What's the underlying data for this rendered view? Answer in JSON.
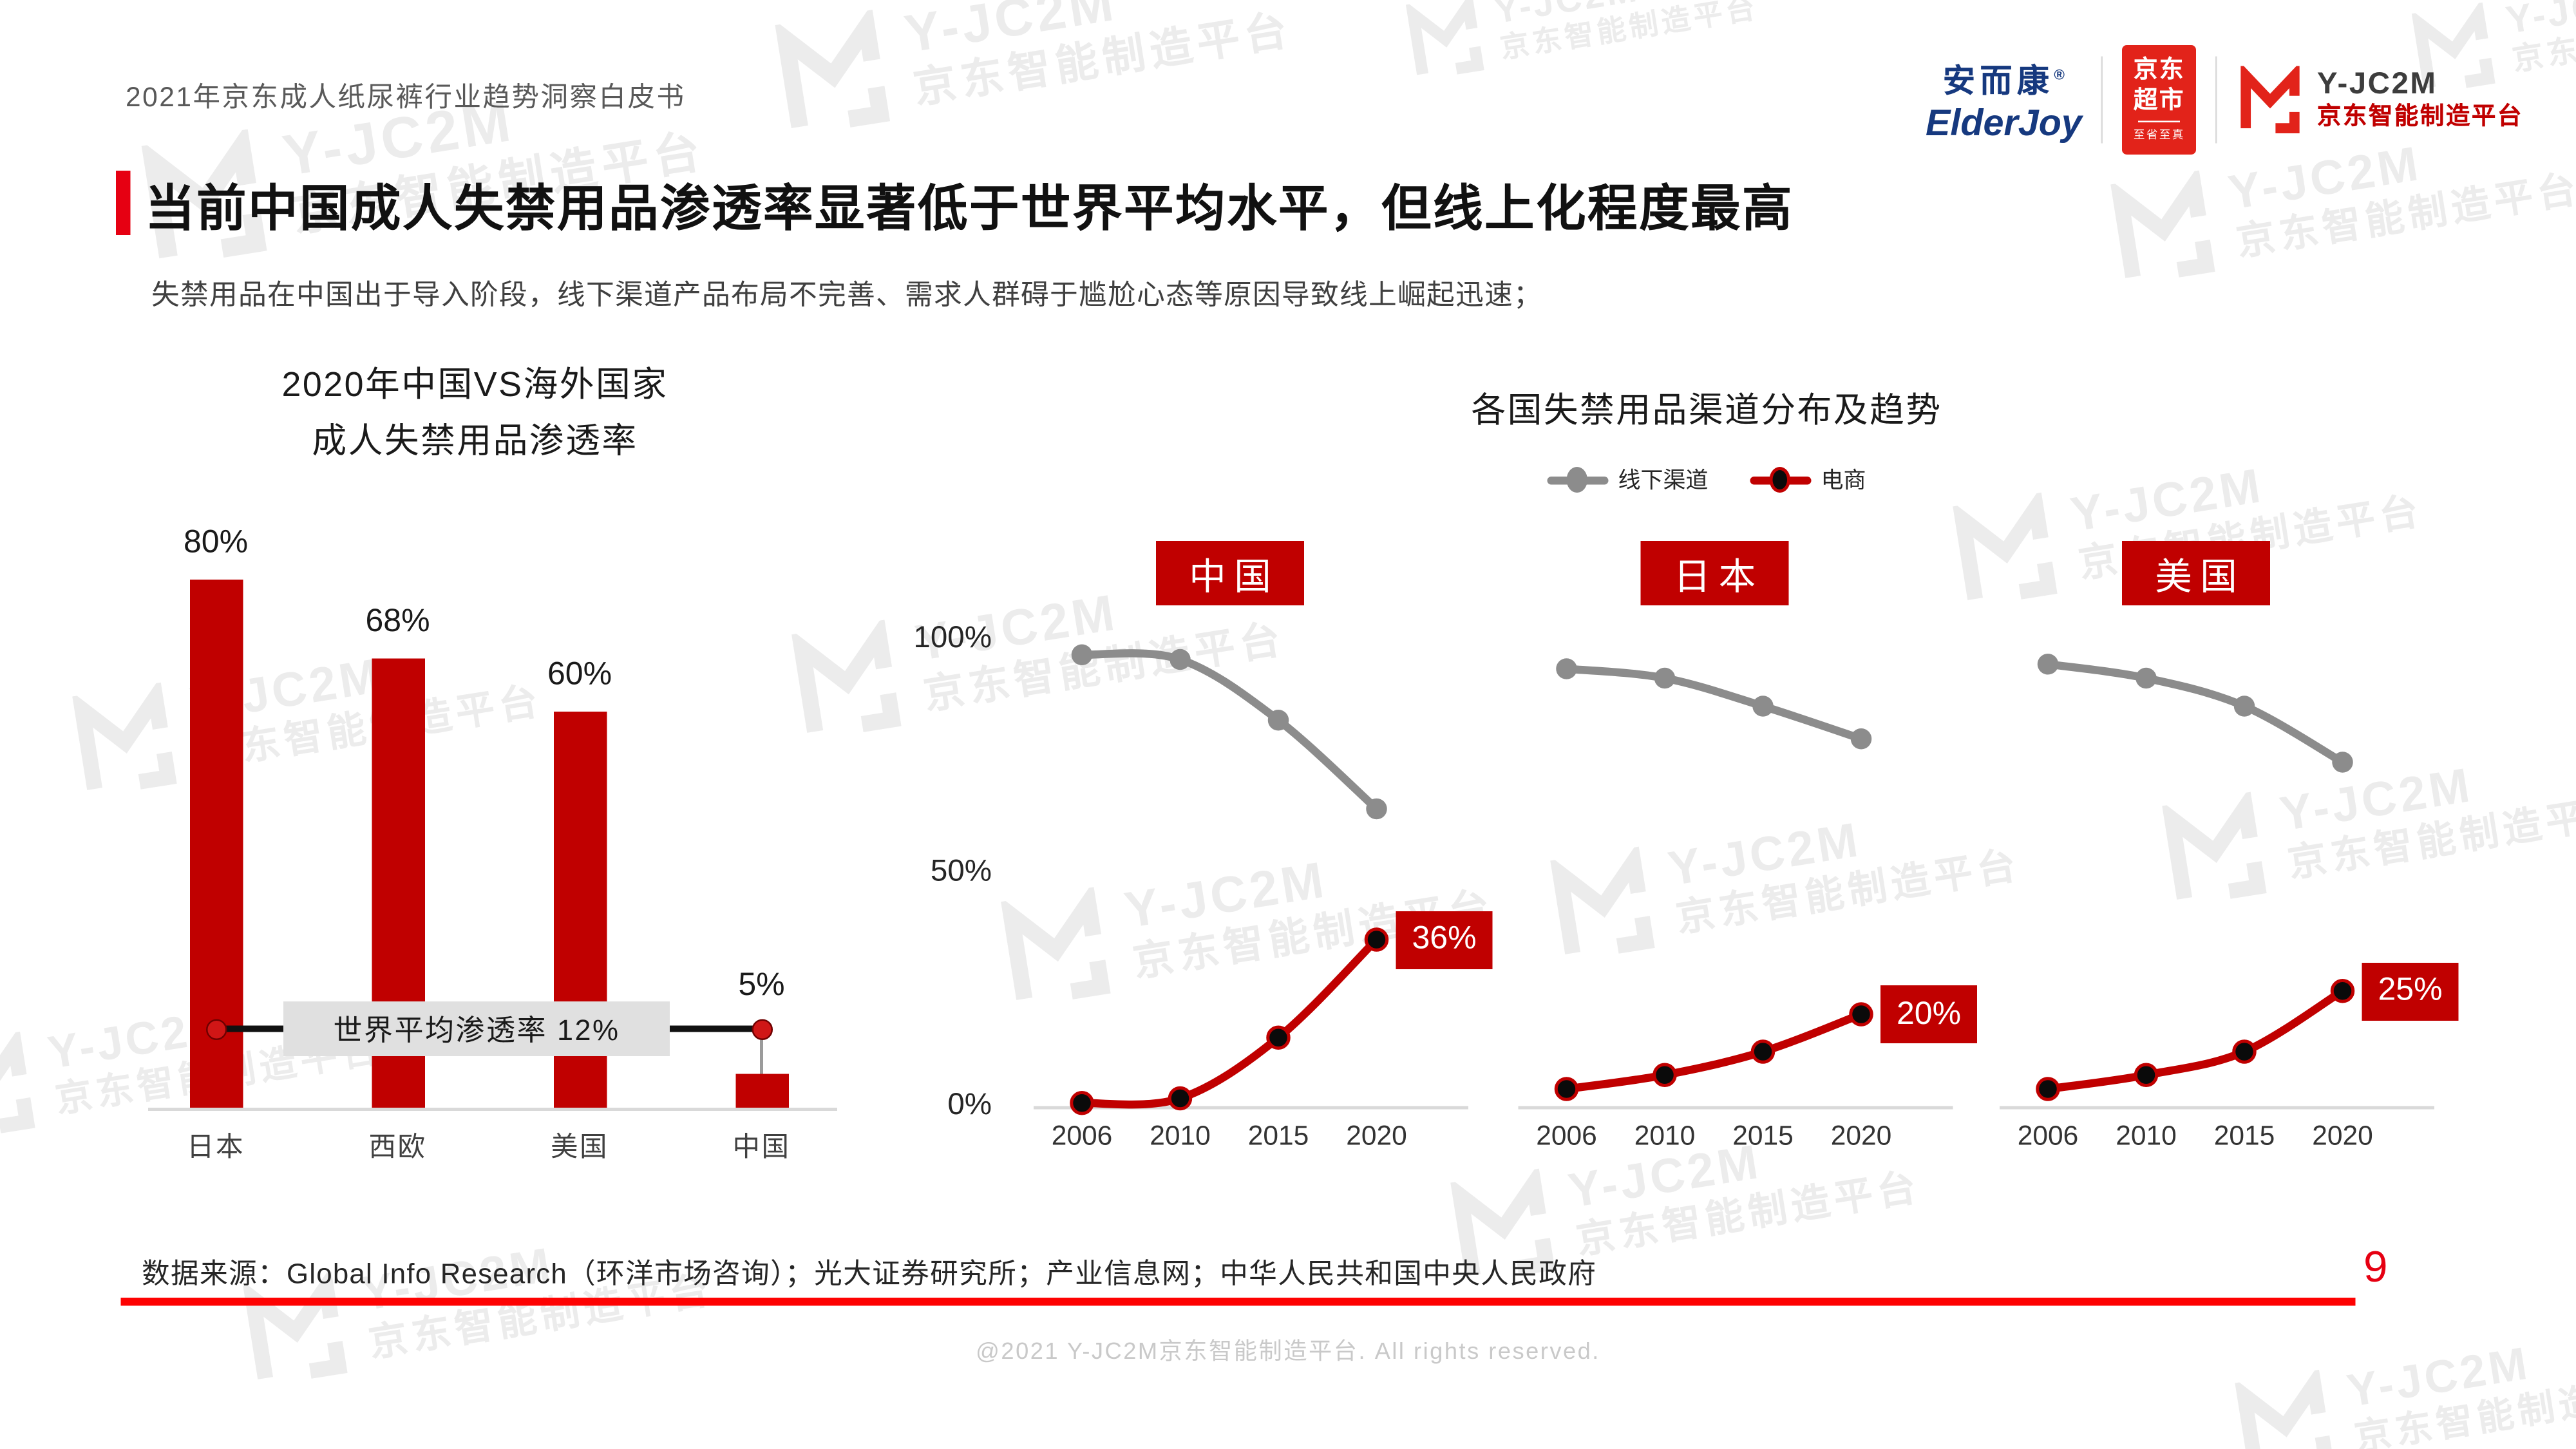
{
  "header": {
    "doc_title": "2021年京东成人纸尿裤行业趋势洞察白皮书",
    "logos": {
      "elderjoy_cn": "安而康",
      "elderjoy_reg": "®",
      "elderjoy_en": "ElderJoy",
      "jd_market_line1": "京东",
      "jd_market_line2": "超市",
      "jd_market_tagline": "至省至真",
      "yjc2m_name": "Y-JC2M",
      "yjc2m_platform": "京东智能制造平台"
    }
  },
  "title": "当前中国成人失禁用品渗透率显著低于世界平均水平，但线上化程度最高",
  "subtitle": "失禁用品在中国出于导入阶段，线下渠道产品布局不完善、需求人群碍于尴尬心态等原因导致线上崛起迅速；",
  "watermark": {
    "brand": "Y-JC2M",
    "platform": "京东智能制造平台"
  },
  "colors": {
    "brand_red": "#c00000",
    "accent_red": "#e60012",
    "jd_red": "#e2231a",
    "rule_red": "#fe0202",
    "gray_line": "#8c8c8c",
    "axis_gray": "#d9d9d9",
    "annotation_bg": "#e0e0e0"
  },
  "chart_data": [
    {
      "type": "bar",
      "title_line1": "2020年中国VS海外国家",
      "title_line2": "成人失禁用品渗透率",
      "categories": [
        "日本",
        "西欧",
        "美国",
        "中国"
      ],
      "values": [
        80,
        68,
        60,
        5
      ],
      "value_labels": [
        "80%",
        "68%",
        "60%",
        "5%"
      ],
      "annotation": {
        "label": "世界平均渗透率 12%",
        "value": 12
      },
      "bar_color": "#c00000",
      "ylim": [
        0,
        100
      ],
      "grid": false
    },
    {
      "type": "line",
      "title": "各国失禁用品渠道分布及趋势",
      "legend": [
        {
          "name": "线下渠道",
          "color": "#8c8c8c"
        },
        {
          "name": "电商",
          "color": "#c00000"
        }
      ],
      "y_ticks": [
        {
          "label": "100%",
          "value": 100
        },
        {
          "label": "50%",
          "value": 50
        },
        {
          "label": "0%",
          "value": 0
        }
      ],
      "x": [
        "2006",
        "2010",
        "2015",
        "2020"
      ],
      "ylim": [
        0,
        100
      ],
      "panels": [
        {
          "country": "中国",
          "offline": [
            97,
            96,
            83,
            64
          ],
          "ecommerce": [
            1,
            2,
            15,
            36
          ],
          "end_label": "36%"
        },
        {
          "country": "日本",
          "offline": [
            94,
            92,
            86,
            79
          ],
          "ecommerce": [
            4,
            7,
            12,
            20
          ],
          "end_label": "20%"
        },
        {
          "country": "美国",
          "offline": [
            95,
            92,
            86,
            74
          ],
          "ecommerce": [
            4,
            7,
            12,
            25
          ],
          "end_label": "25%"
        }
      ]
    }
  ],
  "source": "数据来源：Global Info Research（环洋市场咨询）；光大证券研究所；产业信息网；中华人民共和国中央人民政府",
  "page_number": "9",
  "footer": "@2021 Y-JC2M京东智能制造平台. All rights reserved."
}
